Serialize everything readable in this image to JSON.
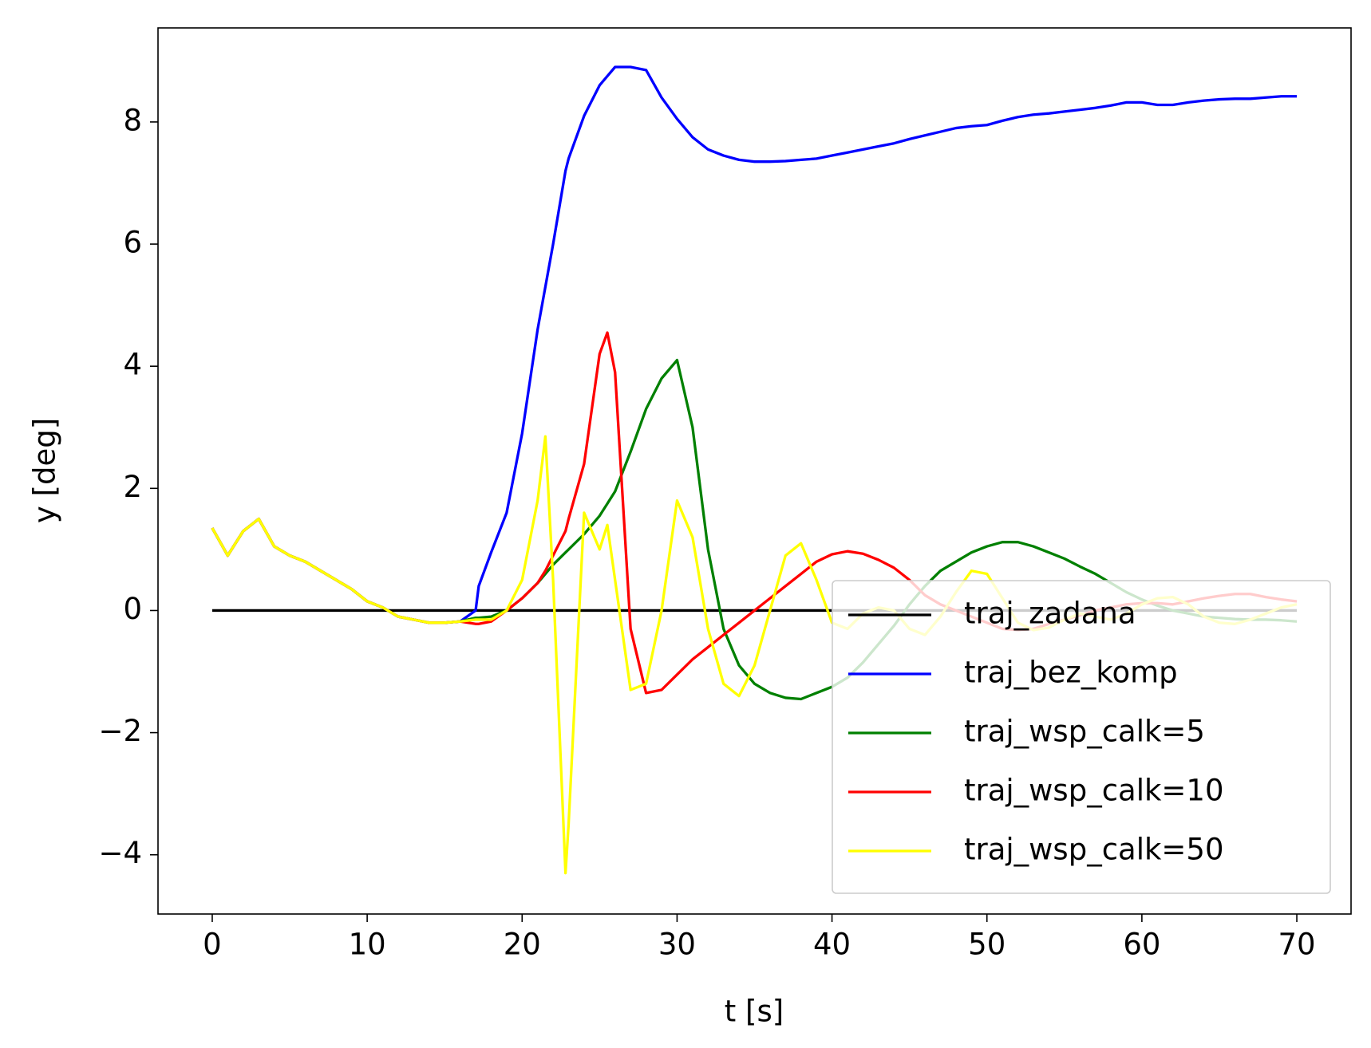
{
  "chart_data": {
    "type": "line",
    "x_label": "t [s]",
    "y_label": "y [deg]",
    "x": [
      0,
      1,
      2,
      3,
      4,
      5,
      6,
      7,
      8,
      9,
      10,
      11,
      12,
      13,
      14,
      15,
      16,
      17,
      17.2,
      18,
      19,
      20,
      21,
      21.5,
      22,
      22.8,
      23,
      24,
      25,
      25.5,
      26,
      27,
      28,
      29,
      30,
      31,
      32,
      33,
      34,
      35,
      36,
      37,
      38,
      39,
      40,
      41,
      42,
      43,
      44,
      45,
      46,
      47,
      48,
      49,
      50,
      51,
      52,
      53,
      54,
      55,
      56,
      57,
      58,
      59,
      60,
      61,
      62,
      63,
      64,
      65,
      66,
      67,
      68,
      69,
      70
    ],
    "series": [
      {
        "name": "traj_zadana",
        "color": "#000000",
        "values": [
          0,
          0,
          0,
          0,
          0,
          0,
          0,
          0,
          0,
          0,
          0,
          0,
          0,
          0,
          0,
          0,
          0,
          0,
          0,
          0,
          0,
          0,
          0,
          0,
          0,
          0,
          0,
          0,
          0,
          0,
          0,
          0,
          0,
          0,
          0,
          0,
          0,
          0,
          0,
          0,
          0,
          0,
          0,
          0,
          0,
          0,
          0,
          0,
          0,
          0,
          0,
          0,
          0,
          0,
          0,
          0,
          0,
          0,
          0,
          0,
          0,
          0,
          0,
          0,
          0,
          0,
          0,
          0,
          0,
          0,
          0,
          0,
          0,
          0,
          0
        ]
      },
      {
        "name": "traj_bez_komp",
        "color": "#0000ff",
        "values": [
          1.35,
          0.9,
          1.3,
          1.5,
          1.05,
          0.9,
          0.8,
          0.65,
          0.5,
          0.35,
          0.15,
          0.05,
          -0.1,
          -0.15,
          -0.2,
          -0.2,
          -0.18,
          0.0,
          0.4,
          0.95,
          1.6,
          2.9,
          4.6,
          5.3,
          6.0,
          7.2,
          7.4,
          8.1,
          8.6,
          8.75,
          8.9,
          8.9,
          8.85,
          8.4,
          8.05,
          7.75,
          7.55,
          7.45,
          7.38,
          7.35,
          7.35,
          7.36,
          7.38,
          7.4,
          7.45,
          7.5,
          7.55,
          7.6,
          7.65,
          7.72,
          7.78,
          7.84,
          7.9,
          7.93,
          7.95,
          8.02,
          8.08,
          8.12,
          8.14,
          8.17,
          8.2,
          8.23,
          8.27,
          8.32,
          8.32,
          8.28,
          8.28,
          8.32,
          8.35,
          8.37,
          8.38,
          8.38,
          8.4,
          8.42,
          8.42
        ]
      },
      {
        "name": "traj_wsp_calk=5",
        "color": "#008000",
        "values": [
          1.35,
          0.9,
          1.3,
          1.5,
          1.05,
          0.9,
          0.8,
          0.65,
          0.5,
          0.35,
          0.15,
          0.05,
          -0.1,
          -0.15,
          -0.2,
          -0.2,
          -0.18,
          -0.12,
          -0.12,
          -0.1,
          0.0,
          0.2,
          0.45,
          0.6,
          0.75,
          0.95,
          1.0,
          1.25,
          1.55,
          1.75,
          1.95,
          2.6,
          3.3,
          3.8,
          4.1,
          3.0,
          1.0,
          -0.3,
          -0.9,
          -1.2,
          -1.35,
          -1.43,
          -1.45,
          -1.35,
          -1.25,
          -1.1,
          -0.85,
          -0.55,
          -0.25,
          0.1,
          0.4,
          0.65,
          0.8,
          0.95,
          1.05,
          1.12,
          1.12,
          1.05,
          0.95,
          0.85,
          0.72,
          0.6,
          0.45,
          0.3,
          0.18,
          0.08,
          0.0,
          -0.05,
          -0.1,
          -0.12,
          -0.14,
          -0.15,
          -0.15,
          -0.16,
          -0.18
        ]
      },
      {
        "name": "traj_wsp_calk=10",
        "color": "#ff0000",
        "values": [
          1.35,
          0.9,
          1.3,
          1.5,
          1.05,
          0.9,
          0.8,
          0.65,
          0.5,
          0.35,
          0.15,
          0.05,
          -0.1,
          -0.15,
          -0.2,
          -0.2,
          -0.18,
          -0.22,
          -0.22,
          -0.18,
          0.0,
          0.2,
          0.45,
          0.65,
          0.9,
          1.3,
          1.5,
          2.4,
          4.2,
          4.55,
          3.9,
          -0.3,
          -1.35,
          -1.3,
          -1.05,
          -0.8,
          -0.6,
          -0.4,
          -0.2,
          0.0,
          0.2,
          0.4,
          0.6,
          0.8,
          0.92,
          0.97,
          0.93,
          0.83,
          0.7,
          0.5,
          0.25,
          0.1,
          0.0,
          -0.1,
          -0.2,
          -0.3,
          -0.32,
          -0.3,
          -0.22,
          -0.15,
          -0.08,
          0.0,
          0.05,
          0.1,
          0.12,
          0.12,
          0.1,
          0.15,
          0.2,
          0.24,
          0.27,
          0.27,
          0.22,
          0.18,
          0.15
        ]
      },
      {
        "name": "traj_wsp_calk=50",
        "color": "#ffff00",
        "values": [
          1.35,
          0.9,
          1.3,
          1.5,
          1.05,
          0.9,
          0.8,
          0.65,
          0.5,
          0.35,
          0.15,
          0.05,
          -0.1,
          -0.15,
          -0.2,
          -0.2,
          -0.18,
          -0.15,
          -0.15,
          -0.15,
          0.0,
          0.5,
          1.8,
          2.85,
          0.5,
          -4.3,
          -3.5,
          1.6,
          1.0,
          1.4,
          0.5,
          -1.3,
          -1.2,
          0.0,
          1.8,
          1.2,
          -0.3,
          -1.2,
          -1.4,
          -0.9,
          0.0,
          0.9,
          1.1,
          0.5,
          -0.2,
          -0.3,
          -0.05,
          0.05,
          0.0,
          -0.3,
          -0.4,
          -0.1,
          0.3,
          0.65,
          0.6,
          0.2,
          -0.2,
          -0.32,
          -0.28,
          -0.15,
          -0.05,
          -0.1,
          -0.15,
          -0.05,
          0.1,
          0.2,
          0.22,
          0.1,
          -0.1,
          -0.2,
          -0.22,
          -0.15,
          -0.05,
          0.05,
          0.1
        ]
      }
    ],
    "xlim": [
      -3.5,
      73.5
    ],
    "ylim": [
      -4.97,
      9.54
    ],
    "xticks": [
      0,
      10,
      20,
      30,
      40,
      50,
      60,
      70
    ],
    "yticks": [
      {
        "value": -4,
        "label": "−4"
      },
      {
        "value": -2,
        "label": "−2"
      },
      0,
      2,
      4,
      6,
      8
    ],
    "legend": "lower right"
  }
}
